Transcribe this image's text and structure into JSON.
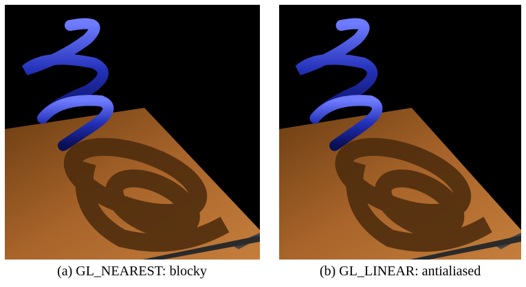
{
  "figures": [
    {
      "caption": "(a) GL_NEAREST: blocky"
    },
    {
      "caption": "(b) GL_LINEAR: antialiased"
    }
  ]
}
